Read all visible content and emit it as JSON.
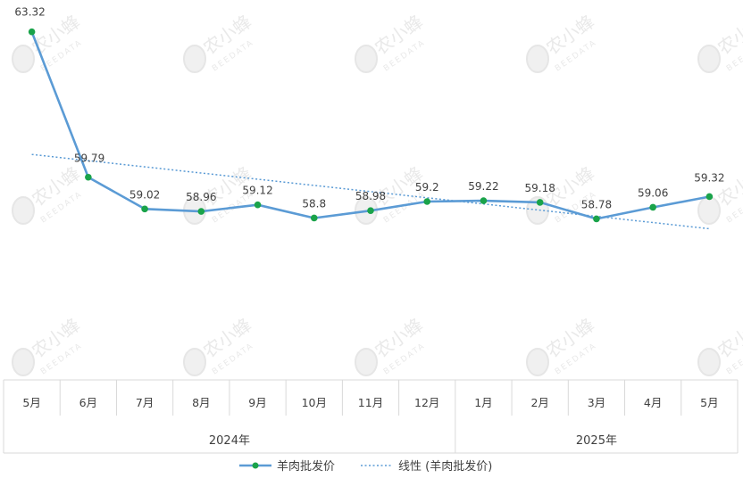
{
  "chart_data": {
    "type": "line",
    "categories": [
      "5月",
      "6月",
      "7月",
      "8月",
      "9月",
      "10月",
      "11月",
      "12月",
      "1月",
      "2月",
      "3月",
      "4月",
      "5月"
    ],
    "year_groups": [
      {
        "label": "2024年",
        "span": 8
      },
      {
        "label": "2025年",
        "span": 5
      }
    ],
    "series": [
      {
        "name": "羊肉批发价",
        "values": [
          63.32,
          59.79,
          59.02,
          58.96,
          59.12,
          58.8,
          58.98,
          59.2,
          59.22,
          59.18,
          58.78,
          59.06,
          59.32
        ],
        "data_labels": [
          "63.32",
          "59.79",
          "59.02",
          "58.96",
          "59.12",
          "58.8",
          "58.98",
          "59.2",
          "59.22",
          "59.18",
          "58.78",
          "59.06",
          "59.32"
        ],
        "line_color": "#5b9bd5",
        "marker_color": "#1aa34a"
      }
    ],
    "trendline": {
      "name": "线性 (羊肉批发价)",
      "type": "linear",
      "color": "#5b9bd5",
      "style": "dotted"
    },
    "ylim": [
      55.0,
      63.4
    ],
    "grid": false,
    "legend_position": "bottom",
    "watermark": {
      "text": "农小蜂",
      "subtext": "BEEDATA"
    }
  }
}
